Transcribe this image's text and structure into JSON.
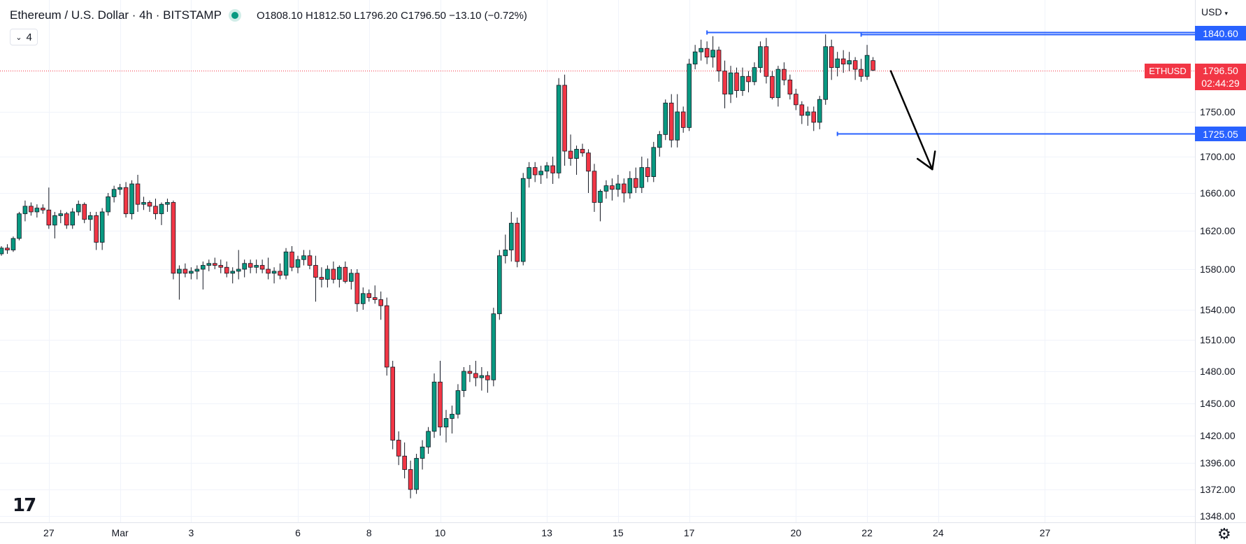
{
  "header": {
    "title": "Ethereum / U.S. Dollar · 4h · BITSTAMP",
    "ohlc": "O1808.10  H1812.50  L1796.20  C1796.50  −13.10 (−0.72%)",
    "indicator_count": "4",
    "currency": "USD"
  },
  "labels": {
    "symbol": "ETHUSD",
    "last_price": "1796.50",
    "countdown": "02:44:29",
    "resistance": "1840.60",
    "support": "1725.05"
  },
  "colors": {
    "up": "#089981",
    "down": "#f23645",
    "level": "#2962ff",
    "grid": "#f0f3fa"
  },
  "chart_data": {
    "type": "candlestick",
    "y_axis_ticks": [
      "1840.60",
      "1750.00",
      "1725.05",
      "1700.00",
      "1660.00",
      "1620.00",
      "1580.00",
      "1540.00",
      "1510.00",
      "1480.00",
      "1450.00",
      "1420.00",
      "1396.00",
      "1372.00",
      "1348.00"
    ],
    "y_ticks_numeric": [
      1750,
      1700,
      1660,
      1620,
      1580,
      1540,
      1510,
      1480,
      1450,
      1420,
      1396,
      1372,
      1348
    ],
    "x_axis_ticks": [
      {
        "label": "27",
        "index": 8
      },
      {
        "label": "Mar",
        "index": 20
      },
      {
        "label": "3",
        "index": 32
      },
      {
        "label": "6",
        "index": 50
      },
      {
        "label": "8",
        "index": 62
      },
      {
        "label": "10",
        "index": 74
      },
      {
        "label": "13",
        "index": 92
      },
      {
        "label": "15",
        "index": 104
      },
      {
        "label": "17",
        "index": 116
      },
      {
        "label": "20",
        "index": 134
      },
      {
        "label": "22",
        "index": 146
      },
      {
        "label": "24",
        "index": 158
      },
      {
        "label": "27",
        "index": 176
      }
    ],
    "candles": [
      [
        1596,
        1604,
        1594,
        1602
      ],
      [
        1602,
        1606,
        1596,
        1600
      ],
      [
        1600,
        1614,
        1598,
        1612
      ],
      [
        1612,
        1640,
        1610,
        1638
      ],
      [
        1638,
        1652,
        1630,
        1646
      ],
      [
        1646,
        1650,
        1636,
        1640
      ],
      [
        1640,
        1648,
        1634,
        1644
      ],
      [
        1644,
        1648,
        1638,
        1642
      ],
      [
        1642,
        1666,
        1622,
        1626
      ],
      [
        1626,
        1640,
        1612,
        1636
      ],
      [
        1636,
        1642,
        1628,
        1638
      ],
      [
        1638,
        1640,
        1622,
        1626
      ],
      [
        1626,
        1644,
        1622,
        1640
      ],
      [
        1640,
        1652,
        1636,
        1648
      ],
      [
        1648,
        1650,
        1628,
        1632
      ],
      [
        1632,
        1640,
        1620,
        1636
      ],
      [
        1636,
        1640,
        1600,
        1608
      ],
      [
        1608,
        1644,
        1600,
        1640
      ],
      [
        1640,
        1660,
        1636,
        1656
      ],
      [
        1656,
        1668,
        1650,
        1664
      ],
      [
        1664,
        1670,
        1658,
        1666
      ],
      [
        1666,
        1672,
        1634,
        1638
      ],
      [
        1638,
        1674,
        1632,
        1670
      ],
      [
        1670,
        1680,
        1640,
        1648
      ],
      [
        1648,
        1656,
        1642,
        1650
      ],
      [
        1650,
        1652,
        1640,
        1646
      ],
      [
        1646,
        1654,
        1632,
        1638
      ],
      [
        1638,
        1650,
        1626,
        1648
      ],
      [
        1648,
        1654,
        1640,
        1650
      ],
      [
        1650,
        1652,
        1570,
        1576
      ],
      [
        1576,
        1584,
        1550,
        1580
      ],
      [
        1580,
        1586,
        1572,
        1576
      ],
      [
        1576,
        1582,
        1570,
        1578
      ],
      [
        1578,
        1584,
        1570,
        1580
      ],
      [
        1580,
        1588,
        1560,
        1584
      ],
      [
        1584,
        1590,
        1578,
        1586
      ],
      [
        1586,
        1592,
        1580,
        1584
      ],
      [
        1584,
        1590,
        1576,
        1582
      ],
      [
        1582,
        1588,
        1572,
        1576
      ],
      [
        1576,
        1582,
        1566,
        1578
      ],
      [
        1578,
        1600,
        1570,
        1580
      ],
      [
        1580,
        1590,
        1572,
        1586
      ],
      [
        1586,
        1590,
        1576,
        1582
      ],
      [
        1582,
        1590,
        1576,
        1584
      ],
      [
        1584,
        1590,
        1576,
        1580
      ],
      [
        1580,
        1592,
        1570,
        1576
      ],
      [
        1576,
        1582,
        1566,
        1578
      ],
      [
        1578,
        1586,
        1570,
        1574
      ],
      [
        1574,
        1602,
        1570,
        1598
      ],
      [
        1598,
        1604,
        1578,
        1582
      ],
      [
        1582,
        1594,
        1576,
        1590
      ],
      [
        1590,
        1600,
        1584,
        1594
      ],
      [
        1594,
        1600,
        1580,
        1584
      ],
      [
        1584,
        1594,
        1548,
        1572
      ],
      [
        1572,
        1582,
        1562,
        1570
      ],
      [
        1570,
        1584,
        1562,
        1580
      ],
      [
        1580,
        1588,
        1566,
        1570
      ],
      [
        1570,
        1584,
        1562,
        1582
      ],
      [
        1582,
        1588,
        1566,
        1568
      ],
      [
        1568,
        1580,
        1560,
        1576
      ],
      [
        1576,
        1580,
        1538,
        1546
      ],
      [
        1546,
        1562,
        1540,
        1556
      ],
      [
        1556,
        1560,
        1548,
        1552
      ],
      [
        1552,
        1564,
        1546,
        1550
      ],
      [
        1550,
        1558,
        1530,
        1544
      ],
      [
        1544,
        1552,
        1476,
        1484
      ],
      [
        1484,
        1490,
        1408,
        1416
      ],
      [
        1416,
        1424,
        1394,
        1402
      ],
      [
        1402,
        1414,
        1382,
        1390
      ],
      [
        1390,
        1398,
        1364,
        1372
      ],
      [
        1372,
        1404,
        1368,
        1400
      ],
      [
        1400,
        1416,
        1390,
        1410
      ],
      [
        1410,
        1428,
        1404,
        1424
      ],
      [
        1424,
        1478,
        1418,
        1470
      ],
      [
        1470,
        1490,
        1420,
        1428
      ],
      [
        1428,
        1444,
        1414,
        1436
      ],
      [
        1436,
        1448,
        1422,
        1440
      ],
      [
        1440,
        1468,
        1436,
        1462
      ],
      [
        1462,
        1484,
        1456,
        1480
      ],
      [
        1480,
        1486,
        1470,
        1478
      ],
      [
        1478,
        1490,
        1466,
        1474
      ],
      [
        1474,
        1484,
        1462,
        1476
      ],
      [
        1476,
        1480,
        1460,
        1472
      ],
      [
        1472,
        1542,
        1466,
        1536
      ],
      [
        1536,
        1600,
        1530,
        1594
      ],
      [
        1594,
        1616,
        1586,
        1600
      ],
      [
        1600,
        1640,
        1588,
        1628
      ],
      [
        1628,
        1634,
        1582,
        1588
      ],
      [
        1588,
        1682,
        1584,
        1676
      ],
      [
        1676,
        1694,
        1666,
        1688
      ],
      [
        1688,
        1694,
        1672,
        1680
      ],
      [
        1680,
        1690,
        1670,
        1684
      ],
      [
        1684,
        1694,
        1676,
        1690
      ],
      [
        1690,
        1700,
        1670,
        1682
      ],
      [
        1682,
        1788,
        1676,
        1780
      ],
      [
        1780,
        1792,
        1690,
        1706
      ],
      [
        1706,
        1724,
        1690,
        1698
      ],
      [
        1698,
        1712,
        1680,
        1708
      ],
      [
        1708,
        1714,
        1700,
        1704
      ],
      [
        1704,
        1708,
        1660,
        1684
      ],
      [
        1684,
        1692,
        1640,
        1650
      ],
      [
        1650,
        1664,
        1630,
        1662
      ],
      [
        1662,
        1674,
        1654,
        1668
      ],
      [
        1668,
        1676,
        1652,
        1664
      ],
      [
        1664,
        1680,
        1656,
        1670
      ],
      [
        1670,
        1676,
        1650,
        1660
      ],
      [
        1660,
        1684,
        1654,
        1676
      ],
      [
        1676,
        1688,
        1660,
        1666
      ],
      [
        1666,
        1700,
        1660,
        1688
      ],
      [
        1688,
        1698,
        1672,
        1678
      ],
      [
        1678,
        1716,
        1672,
        1710
      ],
      [
        1710,
        1728,
        1700,
        1724
      ],
      [
        1724,
        1764,
        1718,
        1760
      ],
      [
        1760,
        1770,
        1710,
        1718
      ],
      [
        1718,
        1770,
        1710,
        1750
      ],
      [
        1750,
        1756,
        1726,
        1732
      ],
      [
        1732,
        1810,
        1728,
        1804
      ],
      [
        1804,
        1826,
        1798,
        1818
      ],
      [
        1818,
        1832,
        1808,
        1822
      ],
      [
        1822,
        1830,
        1804,
        1812
      ],
      [
        1812,
        1836,
        1800,
        1820
      ],
      [
        1820,
        1824,
        1784,
        1796
      ],
      [
        1796,
        1808,
        1754,
        1770
      ],
      [
        1770,
        1802,
        1760,
        1794
      ],
      [
        1794,
        1800,
        1766,
        1774
      ],
      [
        1774,
        1800,
        1768,
        1790
      ],
      [
        1790,
        1796,
        1772,
        1784
      ],
      [
        1784,
        1806,
        1780,
        1800
      ],
      [
        1800,
        1830,
        1794,
        1824
      ],
      [
        1824,
        1834,
        1782,
        1790
      ],
      [
        1790,
        1796,
        1764,
        1766
      ],
      [
        1766,
        1802,
        1756,
        1798
      ],
      [
        1798,
        1806,
        1780,
        1786
      ],
      [
        1786,
        1792,
        1764,
        1770
      ],
      [
        1770,
        1776,
        1752,
        1758
      ],
      [
        1758,
        1762,
        1736,
        1746
      ],
      [
        1746,
        1756,
        1734,
        1750
      ],
      [
        1750,
        1756,
        1728,
        1738
      ],
      [
        1738,
        1768,
        1730,
        1764
      ],
      [
        1764,
        1838,
        1758,
        1824
      ],
      [
        1824,
        1832,
        1786,
        1800
      ],
      [
        1800,
        1818,
        1790,
        1810
      ],
      [
        1810,
        1820,
        1794,
        1804
      ],
      [
        1804,
        1818,
        1796,
        1808
      ],
      [
        1808,
        1812,
        1786,
        1798
      ],
      [
        1798,
        1810,
        1784,
        1790
      ],
      [
        1790,
        1826,
        1786,
        1814
      ],
      [
        1808,
        1812,
        1796,
        1797
      ]
    ],
    "levels": [
      {
        "label": "1840.60",
        "value": 1840.6,
        "from_index": 119
      },
      {
        "label": "1838.00",
        "value": 1838.0,
        "from_index": 145
      },
      {
        "label": "1725.05",
        "value": 1725.05,
        "from_index": 141
      }
    ],
    "last_price": 1796.5,
    "arrow": {
      "from_index": 150,
      "from_value": 1796,
      "to_index": 157,
      "to_value": 1686
    },
    "grid": true
  }
}
